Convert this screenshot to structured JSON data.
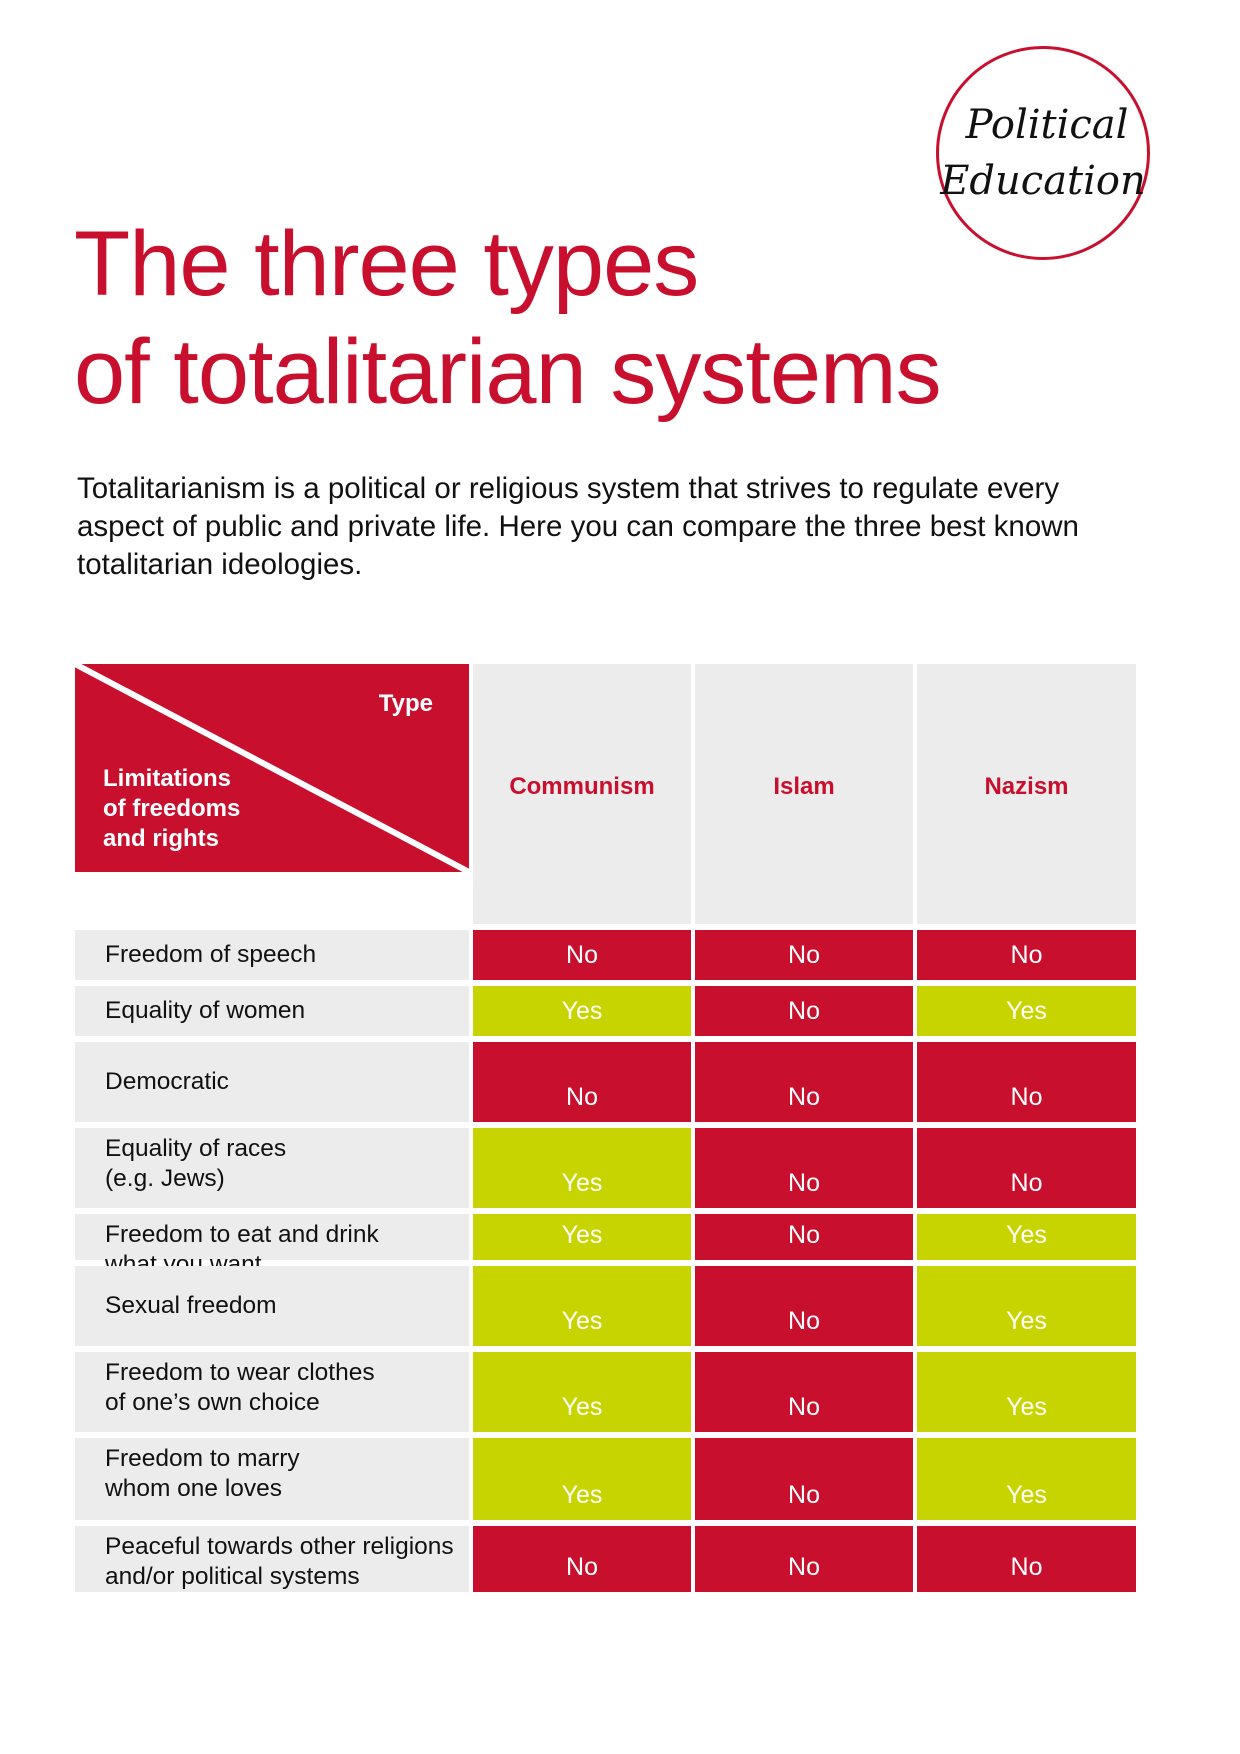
{
  "seal": {
    "line1": "Political",
    "line2": "Education"
  },
  "title": {
    "line1": "The three types",
    "line2": "of totalitarian systems"
  },
  "intro": "Totalitarianism is a political or religious system that strives to regulate every aspect of public and private life. Here you can compare the three best known totalitarian ideologies.",
  "table": {
    "corner": {
      "type_label": "Type",
      "rows_label_lines": [
        "Limitations",
        "of freedoms",
        "and rights"
      ]
    },
    "columns": [
      "Communism",
      "Islam",
      "Nazism"
    ],
    "rows": [
      {
        "label_lines": [
          "Freedom of speech"
        ],
        "values": [
          "No",
          "No",
          "No"
        ]
      },
      {
        "label_lines": [
          "Equality of women"
        ],
        "values": [
          "Yes",
          "No",
          "Yes"
        ]
      },
      {
        "label_lines": [
          "Democratic"
        ],
        "values": [
          "No",
          "No",
          "No"
        ]
      },
      {
        "label_lines": [
          "Equality of races",
          "(e.g. Jews)"
        ],
        "values": [
          "Yes",
          "No",
          "No"
        ]
      },
      {
        "label_lines": [
          "Freedom to eat and drink",
          "what you want"
        ],
        "values": [
          "Yes",
          "No",
          "Yes"
        ]
      },
      {
        "label_lines": [
          "Sexual freedom"
        ],
        "values": [
          "Yes",
          "No",
          "Yes"
        ]
      },
      {
        "label_lines": [
          "Freedom to wear clothes",
          "of one’s own choice"
        ],
        "values": [
          "Yes",
          "No",
          "Yes"
        ]
      },
      {
        "label_lines": [
          "Freedom to marry",
          "whom one loves"
        ],
        "values": [
          "Yes",
          "No",
          "Yes"
        ]
      },
      {
        "label_lines": [
          "Peaceful towards other religions",
          "and/or political systems"
        ],
        "values": [
          "No",
          "No",
          "No"
        ]
      }
    ],
    "colors": {
      "no": "#c8102e",
      "yes": "#c8d400",
      "header_bg": "#ececec"
    }
  }
}
